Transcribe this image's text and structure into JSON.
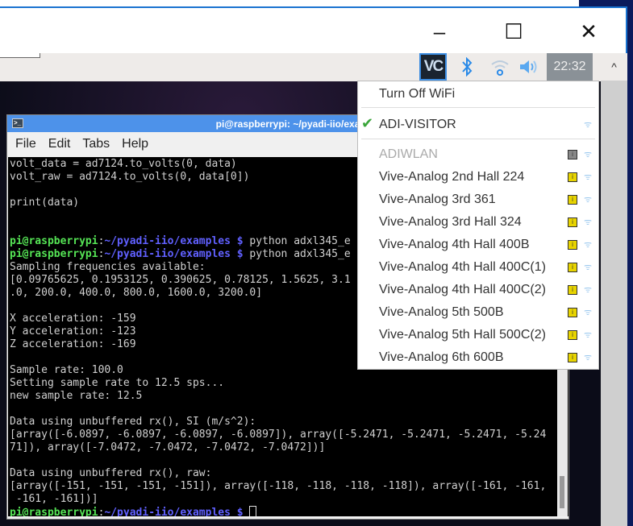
{
  "window": {
    "minimize": "–",
    "maximize": "☐",
    "close": "✕"
  },
  "taskbar": {
    "vnc_label": "VC",
    "clock": "22:32",
    "scroll_up": "^",
    "icons": [
      "vnc-icon",
      "bluetooth-icon",
      "wifi-icon",
      "volume-icon"
    ]
  },
  "terminal": {
    "title": "pi@raspberrypi: ~/pyadi-iio/exa",
    "menu": [
      "File",
      "Edit",
      "Tabs",
      "Help"
    ],
    "lines": [
      {
        "text": "volt_data = ad7124.to_volts(0, data)"
      },
      {
        "text": "volt_raw = ad7124.to_volts(0, data[0])"
      },
      {
        "text": ""
      },
      {
        "text": "print(data)"
      },
      {
        "text": ""
      },
      {
        "text": ""
      },
      {
        "user": "pi@raspberrypi",
        "sep": ":",
        "path": "~/pyadi-iio/examples $",
        "cmd": " python adxl345_e"
      },
      {
        "user": "pi@raspberrypi",
        "sep": ":",
        "path": "~/pyadi-iio/examples $",
        "cmd": " python adxl345_e"
      },
      {
        "text": "Sampling frequencies available:"
      },
      {
        "text": "[0.09765625, 0.1953125, 0.390625, 0.78125, 1.5625, 3.1"
      },
      {
        "text": ".0, 200.0, 400.0, 800.0, 1600.0, 3200.0]"
      },
      {
        "text": ""
      },
      {
        "text": "X acceleration: -159"
      },
      {
        "text": "Y acceleration: -123"
      },
      {
        "text": "Z acceleration: -169"
      },
      {
        "text": ""
      },
      {
        "text": "Sample rate: 100.0"
      },
      {
        "text": "Setting sample rate to 12.5 sps..."
      },
      {
        "text": "new sample rate: 12.5"
      },
      {
        "text": ""
      },
      {
        "text": "Data using unbuffered rx(), SI (m/s^2):"
      },
      {
        "text": "[array([-6.0897, -6.0897, -6.0897, -6.0897]), array([-5.2471, -5.2471, -5.2471, -5.24"
      },
      {
        "text": "71]), array([-7.0472, -7.0472, -7.0472, -7.0472])]"
      },
      {
        "text": ""
      },
      {
        "text": "Data using unbuffered rx(), raw:"
      },
      {
        "text": "[array([-151, -151, -151, -151]), array([-118, -118, -118, -118]), array([-161, -161,"
      },
      {
        "text": " -161, -161])]"
      },
      {
        "user": "pi@raspberrypi",
        "sep": ":",
        "path": "~/pyadi-iio/examples $",
        "cmd": " ",
        "cursor": true
      }
    ]
  },
  "wifi_menu": {
    "turn_off": "Turn Off WiFi",
    "connected": "ADI-VISITOR",
    "networks": [
      {
        "name": "ADIWLAN",
        "disabled": true
      },
      {
        "name": "Vive-Analog 2nd Hall 224",
        "locked": true
      },
      {
        "name": "Vive-Analog 3rd 361",
        "locked": true
      },
      {
        "name": "Vive-Analog 3rd Hall 324",
        "locked": true
      },
      {
        "name": "Vive-Analog 4th Hall 400B",
        "locked": true
      },
      {
        "name": "Vive-Analog 4th Hall 400C(1)",
        "locked": true
      },
      {
        "name": "Vive-Analog 4th Hall 400C(2)",
        "locked": true
      },
      {
        "name": "Vive-Analog 5th 500B",
        "locked": true
      },
      {
        "name": "Vive-Analog 5th Hall 500C(2)",
        "locked": true
      },
      {
        "name": "Vive-Analog 6th 600B",
        "locked": true
      }
    ]
  },
  "colors": {
    "accent": "#1a73d0",
    "title_bar": "#4d92ea",
    "prompt_user": "#55e455",
    "prompt_path": "#6060ff"
  }
}
